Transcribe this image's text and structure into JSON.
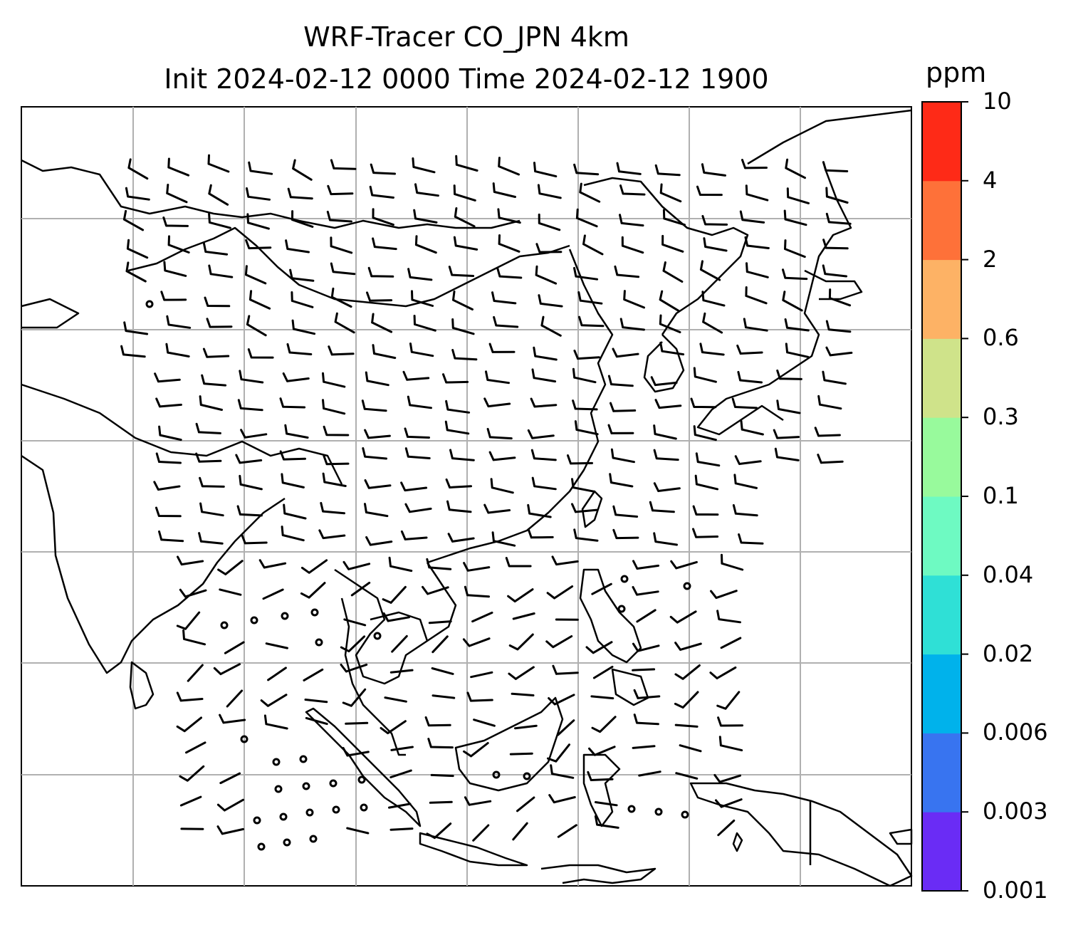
{
  "title": {
    "line1": "WRF-Tracer CO_JPN 4km",
    "line2": "Init 2024-02-12 0000 Time 2024-02-12 1900"
  },
  "colorbar": {
    "unit": "ppm",
    "ticks": [
      "0.001",
      "0.003",
      "0.006",
      "0.02",
      "0.04",
      "0.1",
      "0.3",
      "0.6",
      "2",
      "4",
      "10"
    ],
    "colors": [
      "#6a2cf5",
      "#3874f0",
      "#00b2eb",
      "#2fe0d6",
      "#6efac2",
      "#98fa9c",
      "#cfe38a",
      "#fdb265",
      "#fe7139",
      "#fe2a17"
    ]
  },
  "map": {
    "gridlines": true,
    "field": "wind barbs and tracer CO concentration",
    "region": "East and Southeast Asia"
  }
}
